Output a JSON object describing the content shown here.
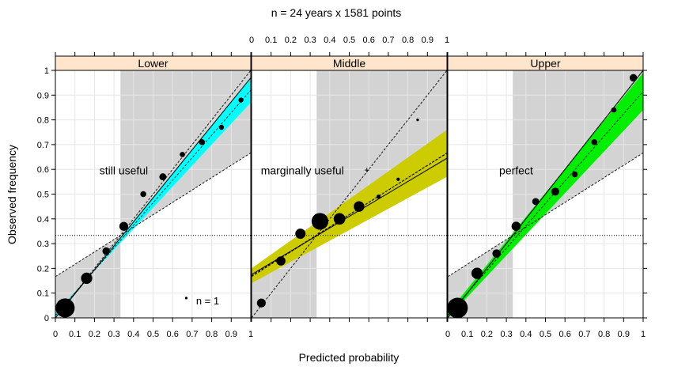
{
  "chart_data": {
    "type": "scatter",
    "title": "n = 24 years x 1581 points",
    "xlabel": "Predicted probability",
    "ylabel": "Observed frequency",
    "xlim": [
      0,
      1
    ],
    "ylim": [
      0,
      1
    ],
    "x_ticks": [
      0,
      0.1,
      0.2,
      0.3,
      0.4,
      0.5,
      0.6,
      0.7,
      0.8,
      0.9,
      1
    ],
    "x_tick_labels": [
      "0",
      "0.1",
      "0.2",
      "0.3",
      "0.4",
      "0.5",
      "0.6",
      "0.7",
      "0.8",
      "0.9",
      "1"
    ],
    "y_ticks": [
      0,
      0.1,
      0.2,
      0.3,
      0.4,
      0.5,
      0.6,
      0.7,
      0.8,
      0.9,
      1
    ],
    "y_tick_labels": [
      "0",
      "0.1",
      "0.2",
      "0.3",
      "0.4",
      "0.5",
      "0.6",
      "0.7",
      "0.8",
      "0.9",
      "1"
    ],
    "climatology": 0.333,
    "size_legend_label": "n = 1",
    "panels": [
      {
        "name": "Lower",
        "annotation": "still useful",
        "band_color": "#00ffff",
        "fit": {
          "slope": 0.97,
          "intercept": 0.0
        },
        "band": {
          "low_at_0": 0.02,
          "high_at_0": 0.0,
          "low_at_1": 0.87,
          "high_at_1": 0.97
        },
        "points": [
          {
            "x": 0.05,
            "y": 0.04,
            "n": 260
          },
          {
            "x": 0.16,
            "y": 0.16,
            "n": 90
          },
          {
            "x": 0.26,
            "y": 0.27,
            "n": 40
          },
          {
            "x": 0.35,
            "y": 0.37,
            "n": 55
          },
          {
            "x": 0.45,
            "y": 0.5,
            "n": 25
          },
          {
            "x": 0.55,
            "y": 0.57,
            "n": 35
          },
          {
            "x": 0.65,
            "y": 0.66,
            "n": 20
          },
          {
            "x": 0.75,
            "y": 0.71,
            "n": 25
          },
          {
            "x": 0.85,
            "y": 0.77,
            "n": 18
          },
          {
            "x": 0.95,
            "y": 0.88,
            "n": 18
          }
        ]
      },
      {
        "name": "Middle",
        "annotation": "marginally useful",
        "band_color": "#cccc00",
        "fit": {
          "slope": 0.47,
          "intercept": 0.175
        },
        "band": {
          "low_at_0": 0.14,
          "high_at_0": 0.2,
          "low_at_1": 0.57,
          "high_at_1": 0.76
        },
        "points": [
          {
            "x": 0.05,
            "y": 0.06,
            "n": 55
          },
          {
            "x": 0.15,
            "y": 0.23,
            "n": 60
          },
          {
            "x": 0.25,
            "y": 0.34,
            "n": 75
          },
          {
            "x": 0.35,
            "y": 0.39,
            "n": 200
          },
          {
            "x": 0.45,
            "y": 0.4,
            "n": 95
          },
          {
            "x": 0.55,
            "y": 0.45,
            "n": 80
          },
          {
            "x": 0.65,
            "y": 0.49,
            "n": 12
          },
          {
            "x": 0.75,
            "y": 0.56,
            "n": 8
          },
          {
            "x": 0.85,
            "y": 0.8,
            "n": 5
          }
        ]
      },
      {
        "name": "Upper",
        "annotation": "perfect",
        "band_color": "#00ee00",
        "fit": {
          "slope": 1.0,
          "intercept": 0.0
        },
        "band": {
          "low_at_0": 0.0,
          "high_at_0": 0.02,
          "low_at_1": 0.84,
          "high_at_1": 0.99
        },
        "points": [
          {
            "x": 0.05,
            "y": 0.04,
            "n": 300
          },
          {
            "x": 0.15,
            "y": 0.18,
            "n": 90
          },
          {
            "x": 0.25,
            "y": 0.26,
            "n": 50
          },
          {
            "x": 0.35,
            "y": 0.37,
            "n": 60
          },
          {
            "x": 0.45,
            "y": 0.47,
            "n": 35
          },
          {
            "x": 0.55,
            "y": 0.51,
            "n": 45
          },
          {
            "x": 0.65,
            "y": 0.58,
            "n": 25
          },
          {
            "x": 0.75,
            "y": 0.71,
            "n": 25
          },
          {
            "x": 0.85,
            "y": 0.84,
            "n": 20
          },
          {
            "x": 0.95,
            "y": 0.97,
            "n": 40
          }
        ]
      }
    ]
  }
}
